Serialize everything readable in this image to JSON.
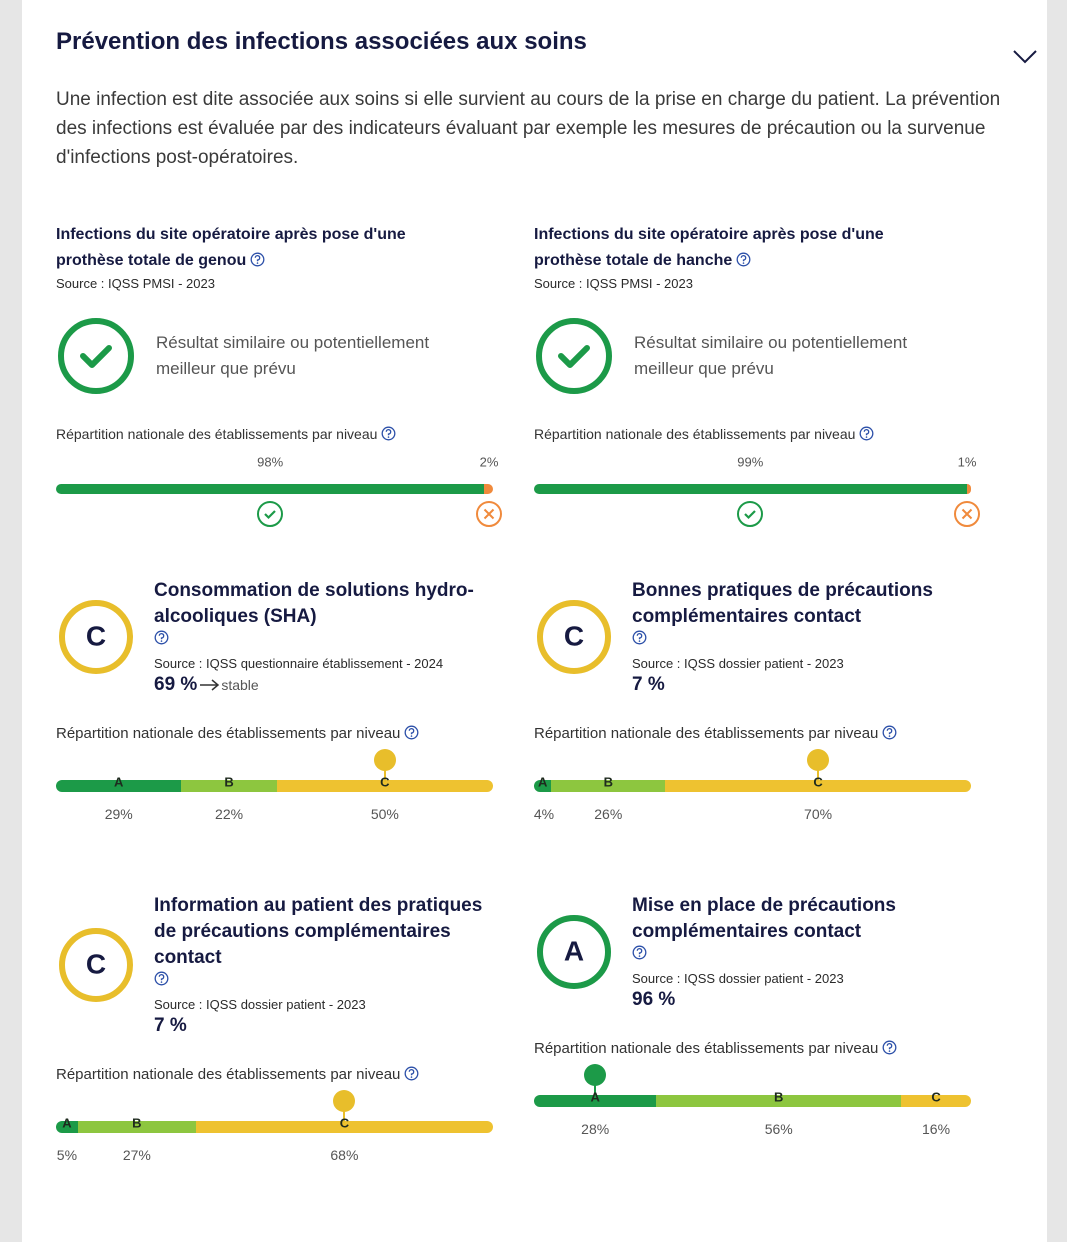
{
  "header": {
    "title": "Prévention des infections associées aux soins",
    "description": "Une infection est dite associée aux soins si elle survient au cours de la prise en charge du patient. La prévention des infections est évaluée par des indicateurs évaluant par exemple les mesures de précaution ou la survenue d'infections post-opératoires."
  },
  "outcome_indicators": [
    {
      "title": "Infections du site opératoire après pose d'une prothèse totale de genou",
      "source": "Source : IQSS PMSI - 2023",
      "result": "Résultat similaire ou potentiellement meilleur que prévu",
      "distribution_title": "Répartition nationale des établissements par niveau",
      "distribution": [
        {
          "value": 98,
          "label": "98%"
        },
        {
          "value": 2,
          "label": "2%"
        }
      ]
    },
    {
      "title": "Infections du site opératoire après pose d'une prothèse totale de hanche",
      "source": "Source : IQSS PMSI - 2023",
      "result": "Résultat similaire ou potentiellement meilleur que prévu",
      "distribution_title": "Répartition nationale des établissements par niveau",
      "distribution": [
        {
          "value": 99,
          "label": "99%"
        },
        {
          "value": 1,
          "label": "1%"
        }
      ]
    }
  ],
  "grade_indicators": [
    {
      "title": "Consommation de solutions hydro-alcooliques (SHA)",
      "grade": "C",
      "source": "Source : IQSS questionnaire établissement - 2024",
      "result": "69 %",
      "trend": "stable",
      "distribution_title": "Répartition nationale des établissements par niveau",
      "distribution": [
        {
          "level": "A",
          "value": 29,
          "label": "29%"
        },
        {
          "level": "B",
          "value": 22,
          "label": "22%"
        },
        {
          "level": "C",
          "value": 50,
          "label": "50%"
        }
      ]
    },
    {
      "title": "Bonnes pratiques de précautions complémentaires contact",
      "grade": "C",
      "source": "Source : IQSS dossier patient - 2023",
      "result": "7 %",
      "distribution_title": "Répartition nationale des établissements par niveau",
      "distribution": [
        {
          "level": "A",
          "value": 4,
          "label": "4%"
        },
        {
          "level": "B",
          "value": 26,
          "label": "26%"
        },
        {
          "level": "C",
          "value": 70,
          "label": "70%"
        }
      ]
    },
    {
      "title": "Information au patient des pratiques de précautions complémentaires contact",
      "grade": "C",
      "source": "Source : IQSS dossier patient - 2023",
      "result": "7 %",
      "distribution_title": "Répartition nationale des établissements par niveau",
      "distribution": [
        {
          "level": "A",
          "value": 5,
          "label": "5%"
        },
        {
          "level": "B",
          "value": 27,
          "label": "27%"
        },
        {
          "level": "C",
          "value": 68,
          "label": "68%"
        }
      ]
    },
    {
      "title": "Mise en place de précautions complémentaires contact",
      "grade": "A",
      "source": "Source : IQSS dossier patient - 2023",
      "result": "96 %",
      "distribution_title": "Répartition nationale des établissements par niveau",
      "distribution": [
        {
          "level": "A",
          "value": 28,
          "label": "28%"
        },
        {
          "level": "B",
          "value": 56,
          "label": "56%"
        },
        {
          "level": "C",
          "value": 16,
          "label": "16%"
        }
      ]
    }
  ]
}
